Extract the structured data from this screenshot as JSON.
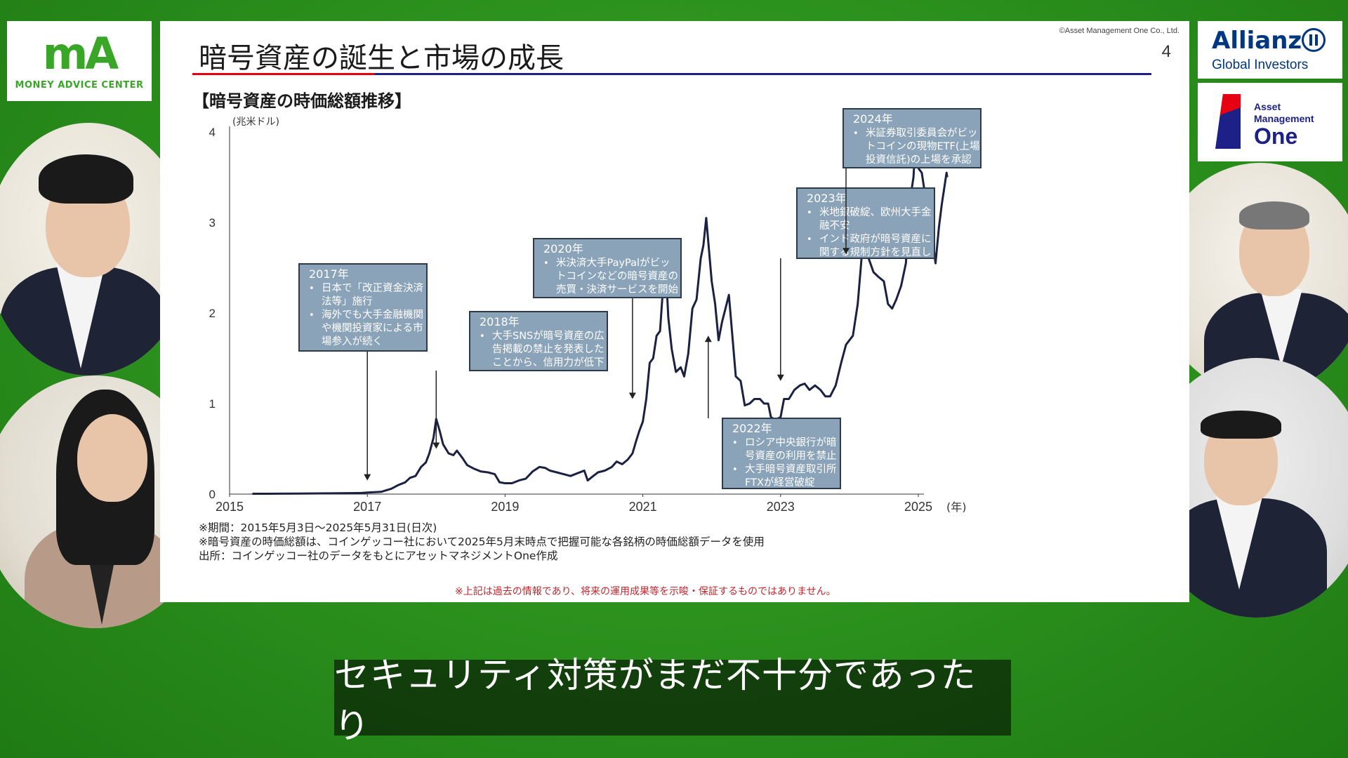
{
  "logos": {
    "ma_mark": "mA",
    "ma_sub": "MONEY ADVICE CENTER",
    "allianz_brand": "Allianz",
    "allianz_sub": "Global Investors",
    "amo_line1": "Asset",
    "amo_line2": "Management",
    "amo_line3": "One"
  },
  "slide": {
    "title": "暗号資産の誕生と市場の成長",
    "copyright": "©Asset Management One Co., Ltd.",
    "page_number": "4",
    "chart_heading": "【暗号資産の時価総額推移】",
    "notes": [
      "※期間：2015年5月3日～2025年5月31日(日次)",
      "※暗号資産の時価総額は、コインゲッコー社において2025年5月末時点で把握可能な各銘柄の時価総額データを使用",
      "出所：コインゲッコー社のデータをもとにアセットマネジメントOne作成"
    ],
    "disclaimer": "※上記は過去の情報であり、将来の運用成果等を示唆・保証するものではありません。"
  },
  "subtitle": "セキュリティ対策がまだ不十分であったり",
  "colors": {
    "line": "#1b2142",
    "annotation_fill": "#8aa3b8",
    "annotation_border": "#2d3a4a",
    "accent_red": "#e60012",
    "accent_blue": "#1d2087"
  },
  "chart_data": {
    "type": "line",
    "title": "",
    "ylabel": "(兆米ドル)",
    "xlabel": "(年)",
    "xlim": [
      2015.0,
      2025.5
    ],
    "ylim": [
      0,
      4
    ],
    "yticks": [
      0,
      1,
      2,
      3,
      4
    ],
    "xticks": [
      2015,
      2017,
      2019,
      2021,
      2023,
      2025
    ],
    "series": [
      {
        "name": "",
        "points": [
          [
            2015.33,
            0.004
          ],
          [
            2015.7,
            0.005
          ],
          [
            2016.0,
            0.006
          ],
          [
            2016.3,
            0.008
          ],
          [
            2016.6,
            0.01
          ],
          [
            2016.9,
            0.012
          ],
          [
            2017.0,
            0.018
          ],
          [
            2017.2,
            0.025
          ],
          [
            2017.35,
            0.06
          ],
          [
            2017.45,
            0.1
          ],
          [
            2017.55,
            0.13
          ],
          [
            2017.62,
            0.18
          ],
          [
            2017.7,
            0.2
          ],
          [
            2017.78,
            0.3
          ],
          [
            2017.85,
            0.35
          ],
          [
            2017.9,
            0.45
          ],
          [
            2017.96,
            0.62
          ],
          [
            2018.0,
            0.83
          ],
          [
            2018.05,
            0.7
          ],
          [
            2018.1,
            0.55
          ],
          [
            2018.18,
            0.45
          ],
          [
            2018.25,
            0.43
          ],
          [
            2018.3,
            0.48
          ],
          [
            2018.38,
            0.4
          ],
          [
            2018.45,
            0.32
          ],
          [
            2018.55,
            0.28
          ],
          [
            2018.65,
            0.25
          ],
          [
            2018.75,
            0.24
          ],
          [
            2018.85,
            0.22
          ],
          [
            2018.92,
            0.13
          ],
          [
            2019.0,
            0.12
          ],
          [
            2019.1,
            0.12
          ],
          [
            2019.2,
            0.15
          ],
          [
            2019.3,
            0.17
          ],
          [
            2019.4,
            0.25
          ],
          [
            2019.5,
            0.3
          ],
          [
            2019.58,
            0.29
          ],
          [
            2019.65,
            0.26
          ],
          [
            2019.75,
            0.24
          ],
          [
            2019.85,
            0.22
          ],
          [
            2019.95,
            0.2
          ],
          [
            2020.05,
            0.23
          ],
          [
            2020.15,
            0.26
          ],
          [
            2020.2,
            0.15
          ],
          [
            2020.28,
            0.2
          ],
          [
            2020.35,
            0.24
          ],
          [
            2020.45,
            0.26
          ],
          [
            2020.55,
            0.3
          ],
          [
            2020.62,
            0.36
          ],
          [
            2020.7,
            0.33
          ],
          [
            2020.78,
            0.38
          ],
          [
            2020.85,
            0.45
          ],
          [
            2020.9,
            0.58
          ],
          [
            2020.95,
            0.7
          ],
          [
            2021.0,
            0.8
          ],
          [
            2021.05,
            1.05
          ],
          [
            2021.1,
            1.45
          ],
          [
            2021.15,
            1.5
          ],
          [
            2021.2,
            1.75
          ],
          [
            2021.25,
            1.8
          ],
          [
            2021.3,
            2.35
          ],
          [
            2021.33,
            2.55
          ],
          [
            2021.37,
            1.95
          ],
          [
            2021.42,
            1.6
          ],
          [
            2021.48,
            1.35
          ],
          [
            2021.55,
            1.4
          ],
          [
            2021.6,
            1.3
          ],
          [
            2021.66,
            1.55
          ],
          [
            2021.72,
            2.05
          ],
          [
            2021.78,
            2.15
          ],
          [
            2021.84,
            2.6
          ],
          [
            2021.88,
            2.75
          ],
          [
            2021.92,
            3.05
          ],
          [
            2021.96,
            2.7
          ],
          [
            2022.0,
            2.35
          ],
          [
            2022.05,
            2.1
          ],
          [
            2022.1,
            1.7
          ],
          [
            2022.15,
            1.9
          ],
          [
            2022.2,
            2.05
          ],
          [
            2022.25,
            2.2
          ],
          [
            2022.3,
            1.75
          ],
          [
            2022.35,
            1.3
          ],
          [
            2022.42,
            1.25
          ],
          [
            2022.48,
            0.98
          ],
          [
            2022.55,
            1.0
          ],
          [
            2022.62,
            1.05
          ],
          [
            2022.7,
            1.05
          ],
          [
            2022.76,
            1.0
          ],
          [
            2022.82,
            1.0
          ],
          [
            2022.86,
            0.85
          ],
          [
            2022.92,
            0.82
          ],
          [
            2023.0,
            0.85
          ],
          [
            2023.05,
            1.05
          ],
          [
            2023.12,
            1.05
          ],
          [
            2023.2,
            1.15
          ],
          [
            2023.28,
            1.2
          ],
          [
            2023.35,
            1.22
          ],
          [
            2023.42,
            1.15
          ],
          [
            2023.5,
            1.2
          ],
          [
            2023.58,
            1.15
          ],
          [
            2023.65,
            1.08
          ],
          [
            2023.72,
            1.08
          ],
          [
            2023.8,
            1.2
          ],
          [
            2023.88,
            1.45
          ],
          [
            2023.95,
            1.65
          ],
          [
            2024.0,
            1.7
          ],
          [
            2024.05,
            1.75
          ],
          [
            2024.12,
            2.1
          ],
          [
            2024.18,
            2.65
          ],
          [
            2024.23,
            2.8
          ],
          [
            2024.28,
            2.6
          ],
          [
            2024.35,
            2.45
          ],
          [
            2024.42,
            2.4
          ],
          [
            2024.5,
            2.35
          ],
          [
            2024.56,
            2.1
          ],
          [
            2024.62,
            2.05
          ],
          [
            2024.68,
            2.15
          ],
          [
            2024.75,
            2.3
          ],
          [
            2024.82,
            2.55
          ],
          [
            2024.86,
            3.1
          ],
          [
            2024.9,
            3.35
          ],
          [
            2024.93,
            3.5
          ],
          [
            2024.96,
            3.9
          ],
          [
            2025.0,
            3.6
          ],
          [
            2025.05,
            3.55
          ],
          [
            2025.1,
            3.3
          ],
          [
            2025.16,
            3.05
          ],
          [
            2025.2,
            2.85
          ],
          [
            2025.25,
            2.55
          ],
          [
            2025.3,
            2.95
          ],
          [
            2025.34,
            3.2
          ],
          [
            2025.38,
            3.4
          ],
          [
            2025.41,
            3.55
          ],
          [
            2025.42,
            3.5
          ]
        ]
      }
    ],
    "annotations": [
      {
        "title": "2017年",
        "bullets": [
          "日本で「改正資金決済法等」施行",
          "海外でも大手金融機関や機関投資家による市場参入が続く"
        ],
        "lines": [
          [
            "日本で「改正資金決済"
          ],
          [
            "法等」施行"
          ],
          [
            "海外でも大手金融機関"
          ],
          [
            "や機関投資家による市"
          ],
          [
            "場参入が続く"
          ]
        ],
        "bullet_starts": [
          0,
          2
        ],
        "arrow_x": 2017.0,
        "arrow_y": 0.15,
        "arrow_dir": "down"
      },
      {
        "title": "2018年",
        "bullets": [
          "大手SNSが暗号資産の広告掲載の禁止を発表したことから、信用力が低下"
        ],
        "lines": [
          [
            "大手SNSが暗号資産の広"
          ],
          [
            "告掲載の禁止を発表した"
          ],
          [
            "ことから、信用力が低下"
          ]
        ],
        "bullet_starts": [
          0
        ],
        "arrow_x": 2018.0,
        "arrow_y": 0.5,
        "arrow_dir": "down"
      },
      {
        "title": "2020年",
        "bullets": [
          "米決済大手PayPalがビットコインなどの暗号資産の売買・決済サービスを開始"
        ],
        "lines": [
          [
            "米決済大手PayPalがビッ"
          ],
          [
            "トコインなどの暗号資産の"
          ],
          [
            "売買・決済サービスを開始"
          ]
        ],
        "bullet_starts": [
          0
        ],
        "arrow_x": 2020.85,
        "arrow_y": 1.05,
        "arrow_dir": "down"
      },
      {
        "title": "2022年",
        "bullets": [
          "ロシア中央銀行が暗号資産の利用を禁止",
          "大手暗号資産取引所FTXが経営破綻"
        ],
        "lines": [
          [
            "ロシア中央銀行が暗"
          ],
          [
            "号資産の利用を禁止"
          ],
          [
            "大手暗号資産取引所"
          ],
          [
            "FTXが経営破綻"
          ]
        ],
        "bullet_starts": [
          0,
          2
        ],
        "arrow_x": 2021.95,
        "arrow_y": 1.75,
        "arrow_dir": "up"
      },
      {
        "title": "2023年",
        "bullets": [
          "米地銀破綻、欧州大手金融不安",
          "インド政府が暗号資産に関する規制方針を見直し"
        ],
        "lines": [
          [
            "米地銀破綻、欧州大手金"
          ],
          [
            "融不安"
          ],
          [
            "インド政府が暗号資産に"
          ],
          [
            "関する規制方針を見直し"
          ]
        ],
        "bullet_starts": [
          0,
          2
        ],
        "arrow_x": 2023.0,
        "arrow_y": 1.25,
        "arrow_dir": "down"
      },
      {
        "title": "2024年",
        "bullets": [
          "米証券取引委員会がビットコインの現物ETF(上場投資信託)の上場を承認"
        ],
        "lines": [
          [
            "米証券取引委員会がビッ"
          ],
          [
            "トコインの現物ETF(上場"
          ],
          [
            "投資信託)の上場を承認"
          ]
        ],
        "bullet_starts": [
          0
        ],
        "arrow_x": 2023.95,
        "arrow_y": 2.65,
        "arrow_dir": "down"
      }
    ]
  }
}
